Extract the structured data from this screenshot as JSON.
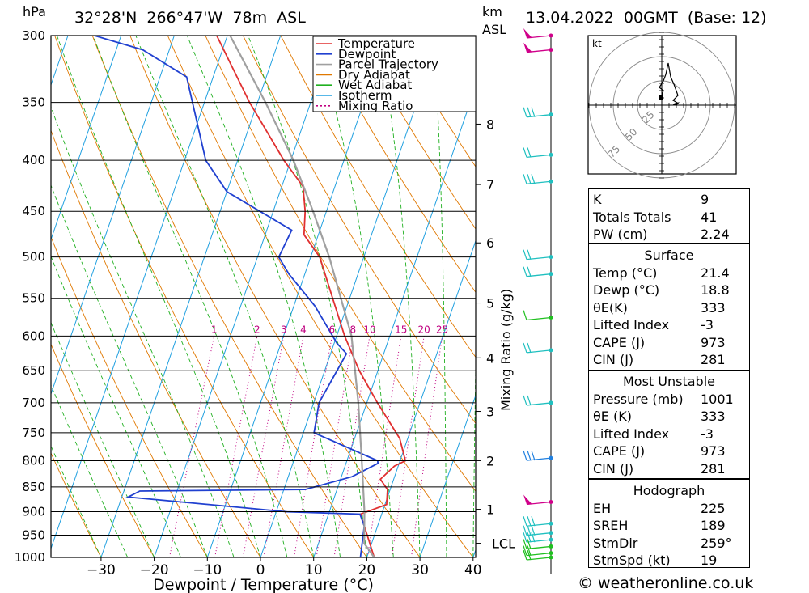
{
  "header": {
    "hpa_label": "hPa",
    "location": "32°28'N  266°47'W  78m  ASL",
    "km_label": "km",
    "asl_label": "ASL",
    "datetime": "13.04.2022  00GMT  (Base: 12)"
  },
  "credit": "© weatheronline.co.uk",
  "legend": [
    {
      "label": "Temperature",
      "color": "#e03030",
      "style": "solid"
    },
    {
      "label": "Dewpoint",
      "color": "#2040d0",
      "style": "solid"
    },
    {
      "label": "Parcel Trajectory",
      "color": "#a0a0a0",
      "style": "solid"
    },
    {
      "label": "Dry Adiabat",
      "color": "#e07800",
      "style": "solid"
    },
    {
      "label": "Wet Adiabat",
      "color": "#20b020",
      "style": "solid"
    },
    {
      "label": "Isotherm",
      "color": "#20a0e0",
      "style": "solid"
    },
    {
      "label": "Mixing Ratio",
      "color": "#c00080",
      "style": "dotted"
    }
  ],
  "chart_data": {
    "type": "line",
    "subtype": "skew-T log-p sounding",
    "xlabel": "Dewpoint / Temperature (°C)",
    "ylabel": "hPa",
    "right_axis_label": "km ASL",
    "mixing_ratio_axis_label": "Mixing Ratio (g/kg)",
    "pressure_ticks": [
      300,
      350,
      400,
      450,
      500,
      550,
      600,
      650,
      700,
      750,
      800,
      850,
      900,
      950,
      1000
    ],
    "temperature_ticks": [
      -30,
      -20,
      -10,
      0,
      10,
      20,
      30,
      40
    ],
    "ylim": [
      1000,
      300
    ],
    "height_ticks": [
      {
        "label": "8",
        "p": 368
      },
      {
        "label": "7",
        "p": 423
      },
      {
        "label": "6",
        "p": 484
      },
      {
        "label": "5",
        "p": 556
      },
      {
        "label": "4",
        "p": 631
      },
      {
        "label": "3",
        "p": 714
      },
      {
        "label": "2",
        "p": 800
      },
      {
        "label": "1",
        "p": 895
      },
      {
        "label": "LCL",
        "p": 968
      }
    ],
    "mixing_ratio_labels": [
      "1",
      "2",
      "3",
      "4",
      "6",
      "8",
      "10",
      "15",
      "20",
      "25"
    ],
    "series": [
      {
        "name": "Temperature",
        "color": "#e03030",
        "points": [
          [
            1000,
            21.4
          ],
          [
            960,
            19.2
          ],
          [
            930,
            17.5
          ],
          [
            905,
            16.0
          ],
          [
            885,
            20.3
          ],
          [
            855,
            19.5
          ],
          [
            835,
            17.5
          ],
          [
            810,
            19.3
          ],
          [
            800,
            21.0
          ],
          [
            760,
            18.5
          ],
          [
            700,
            12.0
          ],
          [
            650,
            6.5
          ],
          [
            600,
            1.5
          ],
          [
            550,
            -3.2
          ],
          [
            500,
            -8.3
          ],
          [
            475,
            -12.7
          ],
          [
            450,
            -14.0
          ],
          [
            425,
            -16.0
          ],
          [
            400,
            -21.3
          ],
          [
            350,
            -31.5
          ],
          [
            300,
            -42.0
          ]
        ]
      },
      {
        "name": "Dewpoint",
        "color": "#2040d0",
        "points": [
          [
            1000,
            18.8
          ],
          [
            930,
            17.5
          ],
          [
            905,
            15.9
          ],
          [
            900,
            2.0
          ],
          [
            870,
            -28.8
          ],
          [
            858,
            -27.0
          ],
          [
            855,
            4.0
          ],
          [
            830,
            12.0
          ],
          [
            805,
            16.0
          ],
          [
            800,
            15.8
          ],
          [
            750,
            2.0
          ],
          [
            700,
            1.0
          ],
          [
            625,
            3.0
          ],
          [
            610,
            0.5
          ],
          [
            560,
            -6.0
          ],
          [
            520,
            -13.0
          ],
          [
            500,
            -16.0
          ],
          [
            470,
            -15.3
          ],
          [
            430,
            -30.0
          ],
          [
            400,
            -36.0
          ],
          [
            330,
            -45.0
          ],
          [
            310,
            -55.0
          ],
          [
            300,
            -65.0
          ]
        ]
      },
      {
        "name": "Parcel Trajectory",
        "color": "#a0a0a0",
        "points": [
          [
            1000,
            21.4
          ],
          [
            968,
            18.6
          ],
          [
            900,
            16.6
          ],
          [
            800,
            12.8
          ],
          [
            700,
            8.4
          ],
          [
            600,
            2.8
          ],
          [
            500,
            -6.5
          ],
          [
            450,
            -12.5
          ],
          [
            400,
            -19.5
          ],
          [
            350,
            -28.5
          ],
          [
            300,
            -39.5
          ]
        ]
      }
    ],
    "hodograph": {
      "unit_label": "kt",
      "ring_labels": [
        "25",
        "50",
        "75"
      ]
    },
    "wind_barbs": [
      {
        "p": 300,
        "color": "#d0008a",
        "pennants": 1,
        "barbs": 0
      },
      {
        "p": 310,
        "color": "#d0008a",
        "pennants": 1,
        "barbs": 0
      },
      {
        "p": 360,
        "color": "#20c0c0",
        "pennants": 0,
        "barbs": 3
      },
      {
        "p": 395,
        "color": "#20c0c0",
        "pennants": 0,
        "barbs": 2
      },
      {
        "p": 420,
        "color": "#20c0c0",
        "pennants": 0,
        "barbs": 3
      },
      {
        "p": 500,
        "color": "#20c0c0",
        "pennants": 0,
        "barbs": 2
      },
      {
        "p": 520,
        "color": "#20c0c0",
        "pennants": 0,
        "barbs": 2
      },
      {
        "p": 575,
        "color": "#20c020",
        "pennants": 0,
        "barbs": 1
      },
      {
        "p": 620,
        "color": "#20c0c0",
        "pennants": 0,
        "barbs": 2
      },
      {
        "p": 700,
        "color": "#20c0c0",
        "pennants": 0,
        "barbs": 2
      },
      {
        "p": 795,
        "color": "#2080e0",
        "pennants": 0,
        "barbs": 3
      },
      {
        "p": 880,
        "color": "#d0008a",
        "pennants": 1,
        "barbs": 0
      },
      {
        "p": 925,
        "color": "#20c0c0",
        "pennants": 0,
        "barbs": 3
      },
      {
        "p": 945,
        "color": "#20c0c0",
        "pennants": 0,
        "barbs": 3
      },
      {
        "p": 960,
        "color": "#20c0c0",
        "pennants": 0,
        "barbs": 3
      },
      {
        "p": 975,
        "color": "#20c020",
        "pennants": 0,
        "barbs": 2
      },
      {
        "p": 990,
        "color": "#20c020",
        "pennants": 0,
        "barbs": 2
      },
      {
        "p": 1000,
        "color": "#20c020",
        "pennants": 0,
        "barbs": 2
      }
    ]
  },
  "indices": [
    {
      "label": "K",
      "value": "9"
    },
    {
      "label": "Totals Totals",
      "value": "41"
    },
    {
      "label": "PW (cm)",
      "value": "2.24"
    }
  ],
  "surface": {
    "title": "Surface",
    "rows": [
      {
        "label": "Temp (°C)",
        "value": "21.4"
      },
      {
        "label": "Dewp (°C)",
        "value": "18.8"
      },
      {
        "label": "θE(K)",
        "value": "333"
      },
      {
        "label": "Lifted Index",
        "value": "-3"
      },
      {
        "label": "CAPE (J)",
        "value": "973"
      },
      {
        "label": "CIN (J)",
        "value": "281"
      }
    ]
  },
  "most_unstable": {
    "title": "Most Unstable",
    "rows": [
      {
        "label": "Pressure (mb)",
        "value": "1001"
      },
      {
        "label": "θE (K)",
        "value": "333"
      },
      {
        "label": "Lifted Index",
        "value": "-3"
      },
      {
        "label": "CAPE (J)",
        "value": "973"
      },
      {
        "label": "CIN (J)",
        "value": "281"
      }
    ]
  },
  "hodograph_table": {
    "title": "Hodograph",
    "rows": [
      {
        "label": "EH",
        "value": "225"
      },
      {
        "label": "SREH",
        "value": "189"
      },
      {
        "label": "StmDir",
        "value": "259°"
      },
      {
        "label": "StmSpd (kt)",
        "value": "19"
      }
    ]
  }
}
